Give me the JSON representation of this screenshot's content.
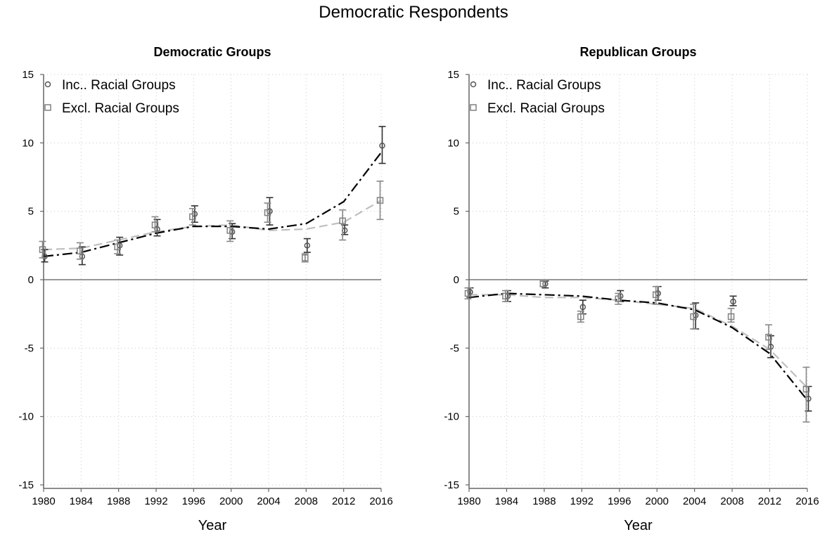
{
  "figure": {
    "title": "Democratic Respondents"
  },
  "chart_data": [
    {
      "type": "scatter",
      "title": "Democratic Groups",
      "xlabel": "Year",
      "ylabel": "",
      "ylim": [
        -15,
        15
      ],
      "xlim": [
        1980,
        2016
      ],
      "x_ticks": [
        1980,
        1984,
        1988,
        1992,
        1996,
        2000,
        2004,
        2008,
        2012,
        2016
      ],
      "y_ticks": [
        15,
        10,
        5,
        0,
        -5,
        -10,
        -15
      ],
      "grid": true,
      "legend_position": "top-left",
      "series": [
        {
          "name": "Inc.. Racial Groups",
          "marker": "circle",
          "color": "#555555",
          "fit_color": "#000000",
          "x": [
            1980,
            1984,
            1988,
            1992,
            1996,
            2000,
            2004,
            2008,
            2012,
            2016
          ],
          "values": [
            1.7,
            1.7,
            2.5,
            3.7,
            4.8,
            3.5,
            5.0,
            2.5,
            3.6,
            9.8
          ],
          "ci_low": [
            1.3,
            1.1,
            1.8,
            3.2,
            4.2,
            3.0,
            4.0,
            2.0,
            3.3,
            8.5
          ],
          "ci_high": [
            2.2,
            2.4,
            3.1,
            4.4,
            5.4,
            4.1,
            6.0,
            3.0,
            4.0,
            11.2
          ],
          "fit": [
            1.7,
            2.0,
            2.7,
            3.4,
            3.9,
            3.9,
            3.7,
            4.1,
            5.7,
            9.3
          ]
        },
        {
          "name": "Excl. Racial Groups",
          "marker": "square",
          "color": "#808080",
          "fit_color": "#bfbfbf",
          "x": [
            1980,
            1984,
            1988,
            1992,
            1996,
            2000,
            2004,
            2008,
            2012,
            2016
          ],
          "values": [
            2.2,
            2.1,
            2.4,
            4.0,
            4.6,
            3.6,
            4.9,
            1.6,
            4.3,
            5.8
          ],
          "ci_low": [
            1.6,
            1.5,
            1.9,
            3.5,
            4.0,
            2.8,
            4.2,
            1.3,
            2.9,
            4.4
          ],
          "ci_high": [
            2.8,
            2.7,
            2.9,
            4.6,
            5.2,
            4.3,
            5.6,
            1.9,
            5.1,
            7.2
          ],
          "fit": [
            2.2,
            2.3,
            2.9,
            3.5,
            3.9,
            4.0,
            3.6,
            3.7,
            4.2,
            5.8
          ]
        }
      ]
    },
    {
      "type": "scatter",
      "title": "Republican Groups",
      "xlabel": "Year",
      "ylabel": "",
      "ylim": [
        -15,
        15
      ],
      "xlim": [
        1980,
        2016
      ],
      "x_ticks": [
        1980,
        1984,
        1988,
        1992,
        1996,
        2000,
        2004,
        2008,
        2012,
        2016
      ],
      "y_ticks": [
        15,
        10,
        5,
        0,
        -5,
        -10,
        -15
      ],
      "grid": true,
      "legend_position": "top-left",
      "series": [
        {
          "name": "Inc.. Racial Groups",
          "marker": "circle",
          "color": "#555555",
          "fit_color": "#000000",
          "x": [
            1980,
            1984,
            1988,
            1992,
            1996,
            2000,
            2004,
            2008,
            2012,
            2016
          ],
          "values": [
            -0.9,
            -1.2,
            -0.3,
            -2.0,
            -1.2,
            -1.0,
            -2.6,
            -1.6,
            -4.9,
            -8.7
          ],
          "ci_low": [
            -1.3,
            -1.6,
            -0.6,
            -2.5,
            -1.6,
            -1.5,
            -3.6,
            -1.9,
            -5.7,
            -9.6
          ],
          "ci_high": [
            -0.6,
            -0.8,
            -0.1,
            -1.5,
            -0.8,
            -0.5,
            -1.7,
            -1.2,
            -4.1,
            -7.8
          ],
          "fit": [
            -1.3,
            -1.0,
            -1.1,
            -1.2,
            -1.5,
            -1.7,
            -2.2,
            -3.5,
            -5.4,
            -8.8
          ]
        },
        {
          "name": "Excl. Racial Groups",
          "marker": "square",
          "color": "#808080",
          "fit_color": "#bfbfbf",
          "x": [
            1980,
            1984,
            1988,
            1992,
            1996,
            2000,
            2004,
            2008,
            2012,
            2016
          ],
          "values": [
            -1.0,
            -1.2,
            -0.3,
            -2.7,
            -1.4,
            -1.1,
            -2.7,
            -2.7,
            -4.2,
            -8.0
          ],
          "ci_low": [
            -1.4,
            -1.6,
            -0.5,
            -3.1,
            -1.8,
            -1.8,
            -3.6,
            -3.1,
            -5.1,
            -10.4
          ],
          "ci_high": [
            -0.6,
            -0.8,
            -0.1,
            -2.3,
            -1.0,
            -0.5,
            -1.8,
            -2.1,
            -3.3,
            -6.4
          ],
          "fit": [
            -1.1,
            -1.1,
            -1.3,
            -1.3,
            -1.5,
            -1.8,
            -2.1,
            -3.4,
            -5.1,
            -7.9
          ]
        }
      ]
    }
  ]
}
